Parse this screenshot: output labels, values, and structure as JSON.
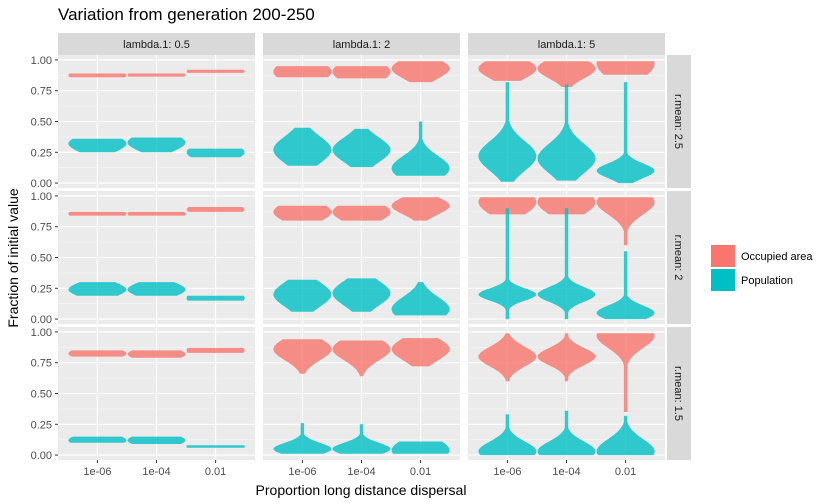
{
  "chart_data": {
    "type": "violin",
    "title": "Variation from generation 200-250",
    "xlabel": "Proportion long distance dispersal",
    "ylabel": "Fraction of initial value",
    "x_categories": [
      "1e-06",
      "1e-04",
      "0.01"
    ],
    "y_ticks": [
      "0.00",
      "0.25",
      "0.50",
      "0.75",
      "1.00"
    ],
    "ylim": [
      -0.04,
      1.04
    ],
    "facet_cols": [
      "lambda.1: 0.5",
      "lambda.1: 2",
      "lambda.1: 5"
    ],
    "facet_rows": [
      "r.mean: 2.5",
      "r.mean: 2",
      "r.mean: 1.5"
    ],
    "legend": {
      "position": "right",
      "items": [
        {
          "label": "Occupied area",
          "color": "#F8766D"
        },
        {
          "label": "Population",
          "color": "#00BFC4"
        }
      ]
    },
    "grid": true,
    "violins": [
      [
        [
          {
            "occ": [
              0.86,
              0.89,
              0.875,
              0.05
            ],
            "pop": [
              0.25,
              0.36,
              0.32,
              0.07
            ]
          },
          {
            "occ": [
              0.865,
              0.89,
              0.878,
              0.05
            ],
            "pop": [
              0.25,
              0.37,
              0.33,
              0.07
            ]
          },
          {
            "occ": [
              0.895,
              0.92,
              0.908,
              0.05
            ],
            "pop": [
              0.21,
              0.28,
              0.25,
              0.07
            ]
          }
        ],
        [
          {
            "occ": [
              0.86,
              0.95,
              0.905,
              0.09
            ],
            "pop": [
              0.14,
              0.45,
              0.27,
              0.11
            ]
          },
          {
            "occ": [
              0.85,
              0.95,
              0.905,
              0.09
            ],
            "pop": [
              0.13,
              0.44,
              0.27,
              0.1
            ]
          },
          {
            "occ": [
              0.82,
              0.99,
              0.93,
              0.08
            ],
            "pop": [
              0.06,
              0.5,
              0.12,
              0.1
            ]
          }
        ],
        [
          {
            "occ": [
              0.83,
              0.99,
              0.93,
              0.08
            ],
            "pop": [
              0.01,
              0.82,
              0.22,
              0.12
            ]
          },
          {
            "occ": [
              0.78,
              0.99,
              0.93,
              0.08
            ],
            "pop": [
              0.02,
              0.8,
              0.2,
              0.12
            ]
          },
          {
            "occ": [
              0.88,
              0.99,
              0.97,
              0.12
            ],
            "pop": [
              0.0,
              0.82,
              0.1,
              0.06
            ]
          }
        ]
      ],
      [
        [
          {
            "occ": [
              0.84,
              0.87,
              0.855,
              0.05
            ],
            "pop": [
              0.19,
              0.3,
              0.24,
              0.06
            ]
          },
          {
            "occ": [
              0.84,
              0.87,
              0.855,
              0.05
            ],
            "pop": [
              0.19,
              0.3,
              0.24,
              0.06
            ]
          },
          {
            "occ": [
              0.87,
              0.91,
              0.89,
              0.05
            ],
            "pop": [
              0.15,
              0.19,
              0.17,
              0.08
            ]
          }
        ],
        [
          {
            "occ": [
              0.8,
              0.92,
              0.87,
              0.08
            ],
            "pop": [
              0.06,
              0.32,
              0.2,
              0.1
            ]
          },
          {
            "occ": [
              0.8,
              0.92,
              0.87,
              0.08
            ],
            "pop": [
              0.06,
              0.33,
              0.21,
              0.1
            ]
          },
          {
            "occ": [
              0.8,
              0.99,
              0.92,
              0.07
            ],
            "pop": [
              0.03,
              0.3,
              0.08,
              0.1
            ]
          }
        ],
        [
          {
            "occ": [
              0.85,
              0.99,
              0.95,
              0.1
            ],
            "pop": [
              0.0,
              0.9,
              0.2,
              0.05
            ]
          },
          {
            "occ": [
              0.85,
              0.99,
              0.95,
              0.1
            ],
            "pop": [
              0.0,
              0.9,
              0.2,
              0.06
            ]
          },
          {
            "occ": [
              0.6,
              0.99,
              0.95,
              0.1
            ],
            "pop": [
              0.0,
              0.55,
              0.05,
              0.06
            ]
          }
        ]
      ],
      [
        [
          {
            "occ": [
              0.8,
              0.85,
              0.825,
              0.05
            ],
            "pop": [
              0.1,
              0.15,
              0.12,
              0.05
            ]
          },
          {
            "occ": [
              0.79,
              0.85,
              0.82,
              0.05
            ],
            "pop": [
              0.09,
              0.15,
              0.12,
              0.05
            ]
          },
          {
            "occ": [
              0.83,
              0.87,
              0.85,
              0.07
            ],
            "pop": [
              0.06,
              0.08,
              0.07,
              0.1
            ]
          }
        ],
        [
          {
            "occ": [
              0.66,
              0.94,
              0.86,
              0.09
            ],
            "pop": [
              0.01,
              0.26,
              0.05,
              0.05
            ]
          },
          {
            "occ": [
              0.64,
              0.93,
              0.86,
              0.09
            ],
            "pop": [
              0.01,
              0.25,
              0.05,
              0.05
            ]
          },
          {
            "occ": [
              0.72,
              0.95,
              0.86,
              0.09
            ],
            "pop": [
              0.01,
              0.11,
              0.04,
              0.09
            ]
          }
        ],
        [
          {
            "occ": [
              0.6,
              0.99,
              0.8,
              0.08
            ],
            "pop": [
              0.0,
              0.33,
              0.03,
              0.08
            ]
          },
          {
            "occ": [
              0.6,
              0.99,
              0.8,
              0.07
            ],
            "pop": [
              0.0,
              0.36,
              0.03,
              0.08
            ]
          },
          {
            "occ": [
              0.35,
              0.99,
              0.97,
              0.1
            ],
            "pop": [
              0.0,
              0.32,
              0.03,
              0.1
            ]
          }
        ]
      ]
    ]
  }
}
